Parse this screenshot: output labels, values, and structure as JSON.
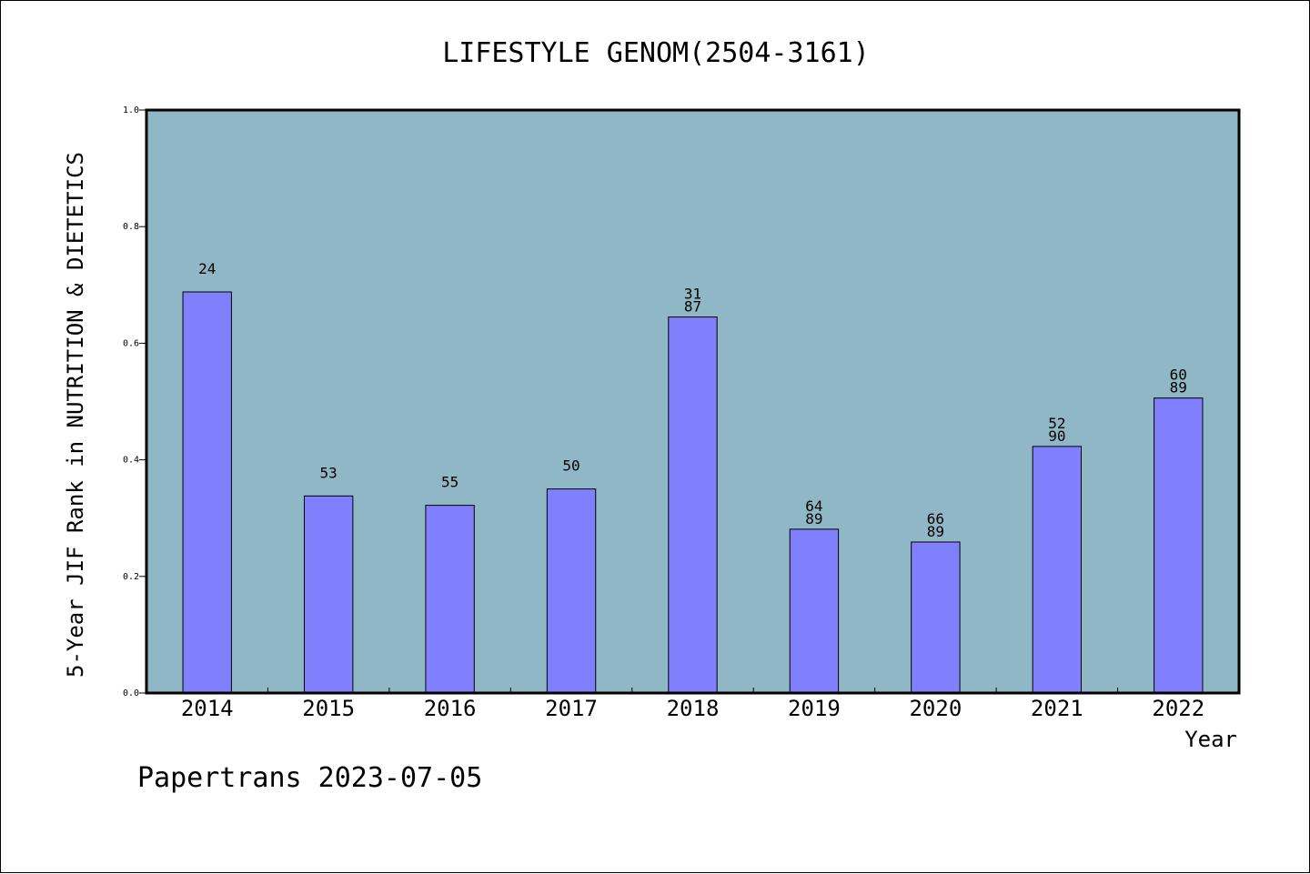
{
  "chart_data": {
    "type": "bar",
    "title": "LIFESTYLE GENOM(2504-3161)",
    "xlabel": "Year",
    "ylabel": "5-Year JIF Rank in NUTRITION & DIETETICS",
    "ylim": [
      0,
      1.0
    ],
    "yticks": [
      "0.0",
      "0.2",
      "0.4",
      "0.6",
      "0.8",
      "1.0"
    ],
    "categories": [
      "2014",
      "2015",
      "2016",
      "2017",
      "2018",
      "2019",
      "2020",
      "2021",
      "2022"
    ],
    "values": [
      0.688,
      0.338,
      0.322,
      0.35,
      0.645,
      0.281,
      0.259,
      0.423,
      0.506
    ],
    "bar_labels": [
      [
        "24"
      ],
      [
        "53"
      ],
      [
        "55"
      ],
      [
        "50"
      ],
      [
        "31",
        "87"
      ],
      [
        "64",
        "89"
      ],
      [
        "66",
        "89"
      ],
      [
        "52",
        "90"
      ],
      [
        "60",
        "89"
      ]
    ],
    "grid": false,
    "colors": {
      "plot_background": "#8fb7c6",
      "bar": "#8080ff",
      "bar_edge": "#000000"
    }
  },
  "footer": "Papertrans 2023-07-05"
}
